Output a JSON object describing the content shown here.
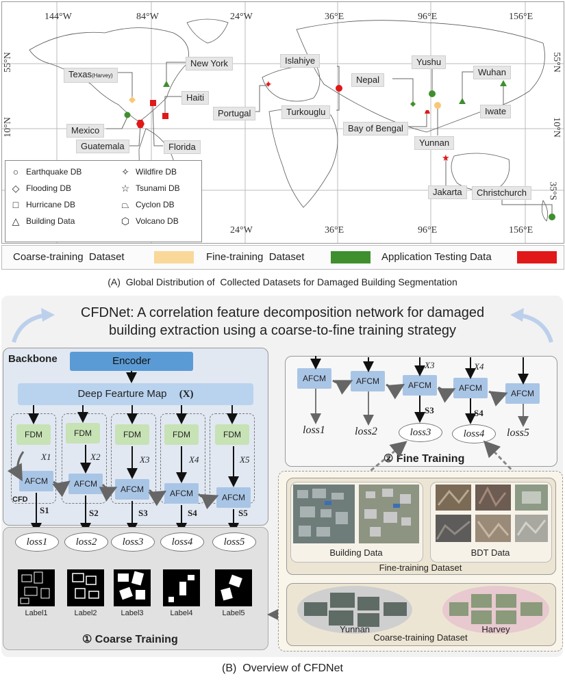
{
  "map": {
    "top_coords": [
      "144°W",
      "84°W",
      "24°W",
      "36°E",
      "96°E",
      "156°E"
    ],
    "bottom_coords": [
      "24°W",
      "36°E",
      "96°E",
      "156°E"
    ],
    "left_coords": [
      "55°N",
      "10°N"
    ],
    "right_coords": [
      "55°N",
      "10°N",
      "35°S"
    ],
    "places": {
      "texas": "Texas",
      "texas_sup": "(Harvey)",
      "new_york": "New York",
      "haiti": "Haiti",
      "mexico": "Mexico",
      "guatemala": "Guatemala",
      "florida": "Florida",
      "portugal": "Portugal",
      "islahiye": "Islahiye",
      "turkouglu": "Turkouglu",
      "nepal": "Nepal",
      "yushu": "Yushu",
      "bay_of_bengal": "Bay of Bengal",
      "yunnan": "Yunnan",
      "wuhan": "Wuhan",
      "iwate": "Iwate",
      "jakarta": "Jakarta",
      "christchurch": "Christchurch"
    },
    "symbol_legend": {
      "earthquake": "Earthquake DB",
      "flooding": "Flooding DB",
      "hurricane": "Hurricane DB",
      "building": "Building Data",
      "wildfire": "Wildfire DB",
      "tsunami": "Tsunami DB",
      "cyclon": "Cyclon DB",
      "volcano": "Volcano DB"
    },
    "color_legend": {
      "coarse": "Coarse-training  Dataset",
      "fine": "Fine-training  Dataset",
      "app": "Application Testing Data",
      "coarse_color": "#f9d89a",
      "fine_color": "#3f8f2e",
      "app_color": "#e01818"
    },
    "caption": "(A)  Global Distribution of  Collected Datasets for Damaged Building Segmentation"
  },
  "net": {
    "title_line1": "CFDNet: A correlation feature decomposition network for damaged",
    "title_line2": "building  extraction using a coarse-to-fine training strategy",
    "backbone": "Backbone",
    "encoder": "Encoder",
    "deep_map": "Deep Fearture Map",
    "deep_map_var": "(X)",
    "fdm": "FDM",
    "afcm": "AFCM",
    "cfd": "CFD",
    "xs": [
      "X1",
      "X2",
      "X3",
      "X4",
      "X5"
    ],
    "ss": [
      "S1",
      "S2",
      "S3",
      "S4",
      "S5"
    ],
    "losses": [
      "loss1",
      "loss2",
      "loss3",
      "loss4",
      "loss5"
    ],
    "labels": [
      "Label1",
      "Label2",
      "Label3",
      "Label4",
      "Label5"
    ],
    "coarse_training": "① Coarse Training",
    "fine_training": "② Fine Training",
    "fine_xs": [
      "X3",
      "X4"
    ],
    "fine_ss": [
      "S3",
      "S4"
    ],
    "building_data": "Building Data",
    "bdt_data": "BDT Data",
    "fine_dataset": "Fine-training Dataset",
    "yunnan": "Yunnan",
    "harvey": "Harvey",
    "coarse_dataset": "Coarse-training Dataset",
    "caption": "(B)  Overview of CFDNet"
  }
}
